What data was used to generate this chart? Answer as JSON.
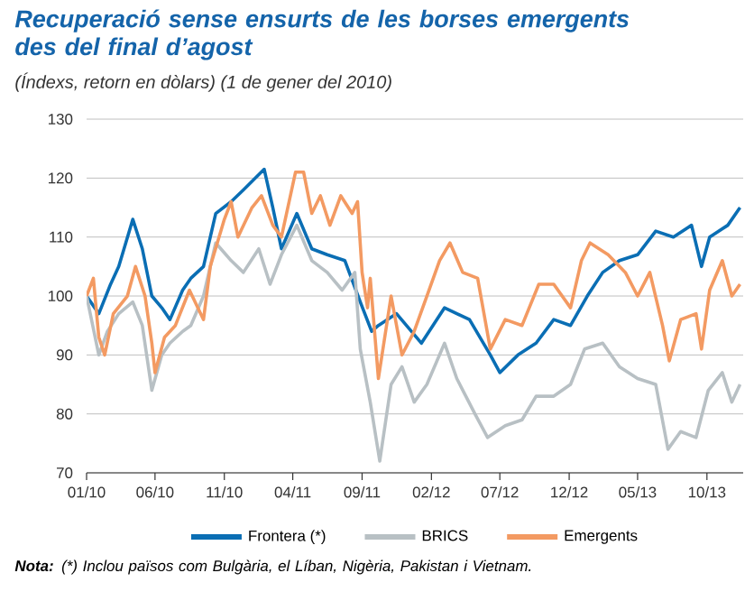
{
  "chart_data": {
    "type": "line",
    "title": "Recuperació sense ensurts de les borses emergents des del final d’agost",
    "subtitle": "(Índexs, retorn en dòlars) (1 de gener del 2010)",
    "annotations": [
      "**Nota:** (*) Inclou països com Bulgària, el Líban, Nigèria, Pakistan i Vietnam."
    ],
    "xlim": [
      "2010-01-01",
      "2013-12-20"
    ],
    "xticks": [
      {
        "value": "2010-01-01",
        "label": "01/10"
      },
      {
        "value": "2010-06-01",
        "label": "06/10"
      },
      {
        "value": "2010-11-01",
        "label": "11/10"
      },
      {
        "value": "2011-04-01",
        "label": "04/11"
      },
      {
        "value": "2011-09-01",
        "label": "09/11"
      },
      {
        "value": "2012-02-01",
        "label": "02/12"
      },
      {
        "value": "2012-07-01",
        "label": "07/12"
      },
      {
        "value": "2012-12-01",
        "label": "12/12"
      },
      {
        "value": "2013-05-01",
        "label": "05/13"
      },
      {
        "value": "2013-10-01",
        "label": "10/13"
      }
    ],
    "ylim": [
      70,
      130
    ],
    "yticks": [
      70,
      80,
      90,
      100,
      110,
      120,
      130
    ],
    "grid": "y",
    "legend": "bottom",
    "line_style": "solid",
    "series": [
      {
        "name": "Frontera (*)",
        "color": "#0a6eb4",
        "x": [
          "2010-01-01",
          "2010-01-28",
          "2010-02-23",
          "2010-03-13",
          "2010-04-13",
          "2010-05-04",
          "2010-05-25",
          "2010-06-16",
          "2010-07-04",
          "2010-08-01",
          "2010-08-19",
          "2010-09-16",
          "2010-10-13",
          "2010-11-16",
          "2010-12-13",
          "2011-01-28",
          "2011-02-16",
          "2011-03-07",
          "2011-04-10",
          "2011-05-13",
          "2011-06-16",
          "2011-07-25",
          "2011-08-28",
          "2011-09-22",
          "2011-10-07",
          "2011-11-16",
          "2012-01-10",
          "2012-03-01",
          "2012-04-25",
          "2012-06-10",
          "2012-07-01",
          "2012-08-10",
          "2012-09-19",
          "2012-10-28",
          "2012-12-04",
          "2013-01-10",
          "2013-02-13",
          "2013-03-22",
          "2013-05-01",
          "2013-06-10",
          "2013-07-19",
          "2013-08-28",
          "2013-09-19",
          "2013-10-07",
          "2013-11-16",
          "2013-12-13"
        ],
        "values": [
          100,
          97,
          102,
          105,
          113,
          108,
          100,
          98,
          96,
          101,
          103,
          105,
          114,
          116,
          118,
          121.5,
          115,
          108,
          114,
          108,
          107,
          106,
          99,
          94,
          95,
          97,
          92,
          98,
          96,
          90,
          87,
          90,
          92,
          96,
          95,
          100,
          104,
          106,
          107,
          111,
          110,
          112,
          105,
          110,
          112,
          115
        ]
      },
      {
        "name": "BRICS",
        "color": "#b8c0c4",
        "x": [
          "2010-01-01",
          "2010-01-28",
          "2010-02-16",
          "2010-03-13",
          "2010-04-13",
          "2010-05-04",
          "2010-05-25",
          "2010-06-16",
          "2010-07-04",
          "2010-08-01",
          "2010-08-19",
          "2010-09-16",
          "2010-10-13",
          "2010-11-16",
          "2010-12-13",
          "2011-01-16",
          "2011-02-10",
          "2011-03-07",
          "2011-04-10",
          "2011-05-13",
          "2011-06-16",
          "2011-07-19",
          "2011-08-16",
          "2011-08-28",
          "2011-09-19",
          "2011-10-10",
          "2011-11-04",
          "2011-11-28",
          "2011-12-25",
          "2012-01-22",
          "2012-03-01",
          "2012-03-28",
          "2012-05-07",
          "2012-06-04",
          "2012-07-13",
          "2012-08-19",
          "2012-09-19",
          "2012-10-28",
          "2012-12-04",
          "2013-01-04",
          "2013-02-13",
          "2013-03-22",
          "2013-05-01",
          "2013-06-10",
          "2013-07-07",
          "2013-08-04",
          "2013-09-07",
          "2013-10-04",
          "2013-11-04",
          "2013-11-25",
          "2013-12-13"
        ],
        "values": [
          100,
          90,
          94,
          97,
          99,
          95,
          84,
          90,
          92,
          94,
          95,
          100,
          109,
          106,
          104,
          108,
          102,
          107,
          112,
          106,
          104,
          101,
          104,
          91,
          82,
          72,
          85,
          88,
          82,
          85,
          92,
          86,
          80,
          76,
          78,
          79,
          83,
          83,
          85,
          91,
          92,
          88,
          86,
          85,
          74,
          77,
          76,
          84,
          87,
          82,
          85
        ]
      },
      {
        "name": "Emergents",
        "color": "#f39a62",
        "x": [
          "2010-01-01",
          "2010-01-16",
          "2010-01-28",
          "2010-02-10",
          "2010-03-01",
          "2010-04-01",
          "2010-04-19",
          "2010-05-10",
          "2010-05-25",
          "2010-06-01",
          "2010-06-22",
          "2010-07-16",
          "2010-08-16",
          "2010-09-16",
          "2010-10-01",
          "2010-11-01",
          "2010-11-16",
          "2010-12-01",
          "2011-01-01",
          "2011-01-22",
          "2011-02-16",
          "2011-03-07",
          "2011-04-07",
          "2011-04-25",
          "2011-05-13",
          "2011-06-01",
          "2011-06-22",
          "2011-07-16",
          "2011-08-10",
          "2011-08-22",
          "2011-09-01",
          "2011-09-13",
          "2011-09-19",
          "2011-10-07",
          "2011-11-04",
          "2011-11-28",
          "2011-12-25",
          "2012-01-22",
          "2012-02-19",
          "2012-03-13",
          "2012-04-10",
          "2012-05-13",
          "2012-06-10",
          "2012-07-13",
          "2012-08-19",
          "2012-09-25",
          "2012-10-28",
          "2012-12-04",
          "2012-12-28",
          "2013-01-16",
          "2013-02-25",
          "2013-04-04",
          "2013-05-01",
          "2013-05-28",
          "2013-06-25",
          "2013-07-10",
          "2013-08-04",
          "2013-09-07",
          "2013-09-19",
          "2013-10-07",
          "2013-11-04",
          "2013-11-25",
          "2013-12-13"
        ],
        "values": [
          100,
          103,
          93,
          90,
          97,
          100,
          105,
          100,
          92,
          87,
          93,
          95,
          101,
          96,
          105,
          113,
          116,
          110,
          115,
          117,
          112,
          110,
          121,
          121,
          114,
          117,
          112,
          117,
          114,
          116,
          104,
          98,
          103,
          86,
          100,
          90,
          94,
          100,
          106,
          109,
          104,
          103,
          91,
          96,
          95,
          102,
          102,
          98,
          106,
          109,
          107,
          104,
          100,
          104,
          95,
          89,
          96,
          97,
          91,
          101,
          106,
          100,
          102
        ]
      }
    ]
  }
}
